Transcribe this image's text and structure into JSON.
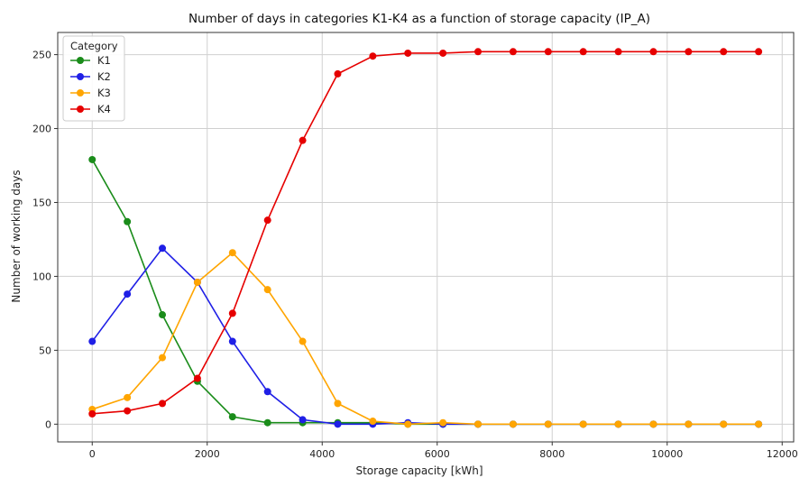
{
  "chart_data": {
    "type": "line",
    "title": "Number of days in categories K1-K4 as a function of storage capacity (IP_A)",
    "xlabel": "Storage capacity [kWh]",
    "ylabel": "Number of working days",
    "xlim": [
      -600,
      12200
    ],
    "ylim": [
      -12,
      265
    ],
    "xticks": [
      0,
      2000,
      4000,
      6000,
      8000,
      10000,
      12000
    ],
    "yticks": [
      0,
      50,
      100,
      150,
      200,
      250
    ],
    "grid": true,
    "legend": {
      "title": "Category",
      "placement": "top-left"
    },
    "x": [
      0,
      610,
      1220,
      1830,
      2440,
      3050,
      3660,
      4270,
      4880,
      5490,
      6100,
      6710,
      7320,
      7930,
      8540,
      9150,
      9760,
      10370,
      10980,
      11590
    ],
    "series": [
      {
        "name": "K1",
        "color": "#1a8c1a",
        "values": [
          179,
          137,
          74,
          29,
          5,
          1,
          1,
          1,
          1,
          0,
          0,
          0,
          0,
          0,
          0,
          0,
          0,
          0,
          0,
          0
        ]
      },
      {
        "name": "K2",
        "color": "#1f1fe6",
        "values": [
          56,
          88,
          119,
          96,
          56,
          22,
          3,
          0,
          0,
          1,
          0,
          0,
          0,
          0,
          0,
          0,
          0,
          0,
          0,
          0
        ]
      },
      {
        "name": "K3",
        "color": "#ffa500",
        "values": [
          10,
          18,
          45,
          96,
          116,
          91,
          56,
          14,
          2,
          0,
          1,
          0,
          0,
          0,
          0,
          0,
          0,
          0,
          0,
          0
        ]
      },
      {
        "name": "K4",
        "color": "#e60000",
        "values": [
          7,
          9,
          14,
          31,
          75,
          138,
          192,
          237,
          249,
          251,
          251,
          252,
          252,
          252,
          252,
          252,
          252,
          252,
          252,
          252
        ]
      }
    ]
  }
}
